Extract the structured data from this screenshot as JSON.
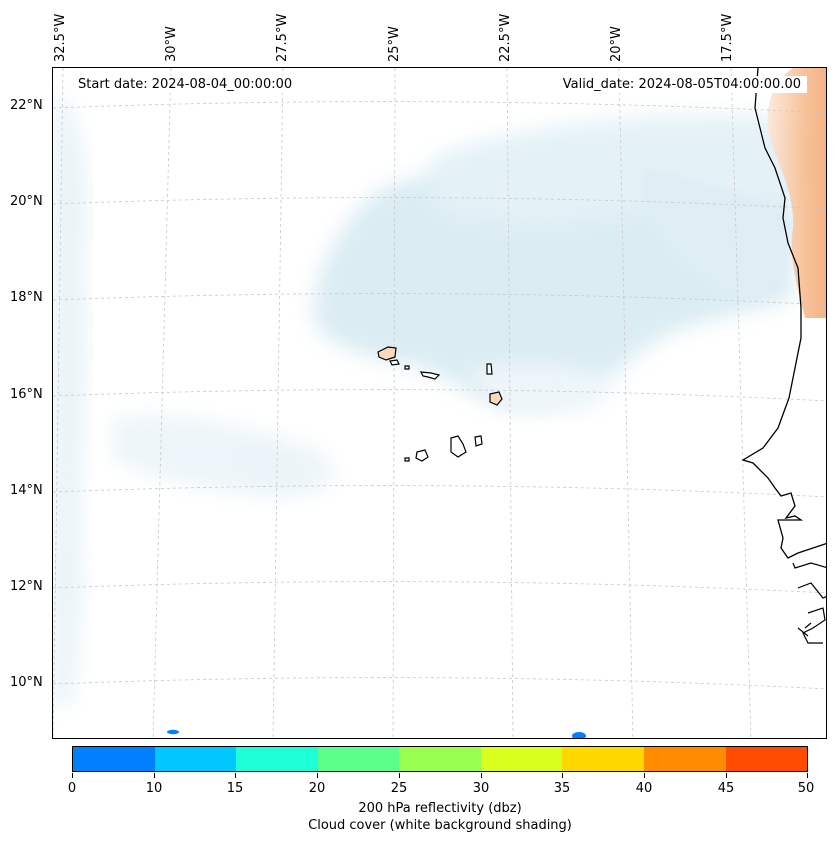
{
  "map": {
    "start_date": "Start date: 2024-08-04_00:00:00",
    "valid_date": "Valid_date: 2024-08-05T04:00:00.00",
    "lon_labels": [
      "32.5°W",
      "30°W",
      "27.5°W",
      "25°W",
      "22.5°W",
      "20°W",
      "17.5°W"
    ],
    "lat_labels": [
      "22°N",
      "20°N",
      "18°N",
      "16°N",
      "14°N",
      "12°N",
      "10°N"
    ]
  },
  "colorbar": {
    "ticks": [
      "0",
      "10",
      "15",
      "20",
      "25",
      "30",
      "35",
      "40",
      "45",
      "50"
    ],
    "colors": [
      "#0080ff",
      "#00c8ff",
      "#1effd8",
      "#5cff8a",
      "#96ff50",
      "#d8ff1e",
      "#ffd800",
      "#ff8c00",
      "#ff4b00"
    ],
    "label_line1": "200 hPa reflectivity (dbz)",
    "label_line2": "Cloud cover (white background shading)"
  },
  "colors": {
    "cloud": "#d8eaf2",
    "land_warm": "#f4b07a",
    "island_fill": "#fbd9bd",
    "reflectivity_blue": "#0080ff"
  }
}
